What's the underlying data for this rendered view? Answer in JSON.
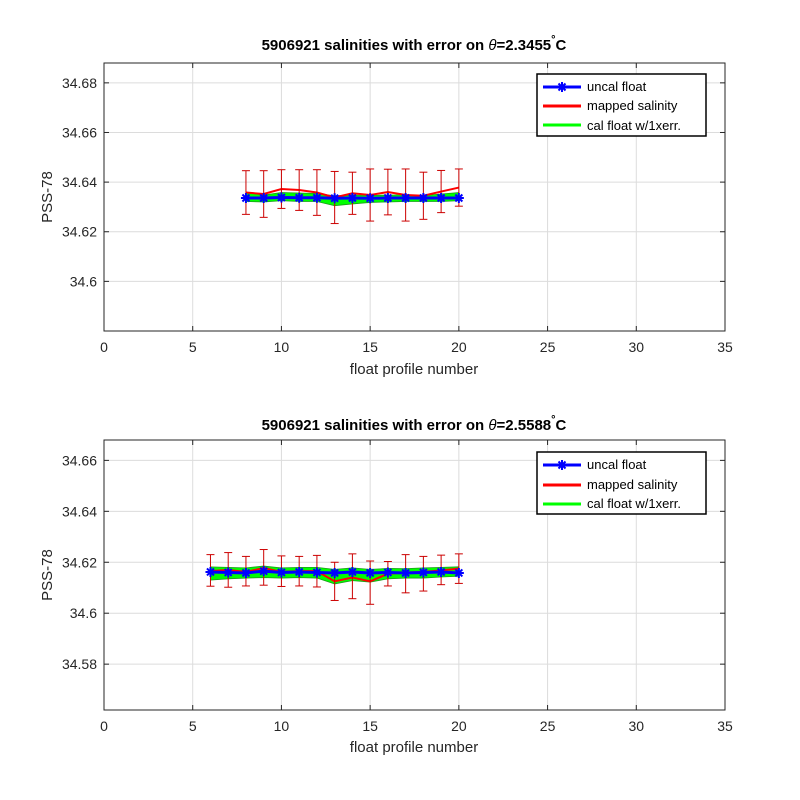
{
  "chart_data": [
    {
      "type": "line",
      "title_prefix": "5906921 salinities with error on ",
      "title_theta": "θ",
      "title_value": "=2.3455",
      "title_degree": "°",
      "title_unit": "C",
      "xlabel": "float profile number",
      "ylabel": "PSS-78",
      "xlim": [
        0,
        35
      ],
      "ylim": [
        34.58,
        34.688
      ],
      "xticks": [
        0,
        5,
        10,
        15,
        20,
        25,
        30,
        35
      ],
      "xtick_labels": [
        "0",
        "5",
        "10",
        "15",
        "20",
        "25",
        "30",
        "35"
      ],
      "yticks": [
        34.6,
        34.62,
        34.64,
        34.66,
        34.68
      ],
      "ytick_labels": [
        "34.6",
        "34.62",
        "34.64",
        "34.66",
        "34.68"
      ],
      "grid": true,
      "legend_position": "top-right",
      "x": [
        8,
        9,
        10,
        11,
        12,
        13,
        14,
        15,
        16,
        17,
        18,
        19,
        20
      ],
      "series": [
        {
          "name": "uncal float",
          "color": "#0000ff",
          "values": [
            34.6336,
            34.6336,
            34.6338,
            34.6337,
            34.6337,
            34.6335,
            34.6336,
            34.6335,
            34.6336,
            34.6336,
            34.6336,
            34.6336,
            34.6336
          ]
        },
        {
          "name": "mapped salinity",
          "color": "#ff0000",
          "values": [
            34.6358,
            34.6352,
            34.6372,
            34.6368,
            34.6358,
            34.6338,
            34.6355,
            34.6348,
            34.636,
            34.6348,
            34.6345,
            34.6362,
            34.6378
          ]
        },
        {
          "name": "cal float w/1xerr.",
          "color": "#00ff00",
          "upper": [
            34.6358,
            34.6348,
            34.6358,
            34.6356,
            34.6354,
            34.6345,
            34.6348,
            34.6346,
            34.6348,
            34.6348,
            34.6346,
            34.6352,
            34.6358
          ],
          "lower": [
            34.6322,
            34.632,
            34.6325,
            34.6322,
            34.6322,
            34.6305,
            34.6312,
            34.6318,
            34.632,
            34.6322,
            34.6322,
            34.6322,
            34.6325
          ]
        }
      ],
      "error_bars": {
        "color": "#cc0000",
        "center": [
          34.6358,
          34.6352,
          34.6372,
          34.6368,
          34.6358,
          34.6338,
          34.6355,
          34.6348,
          34.636,
          34.6348,
          34.6345,
          34.6362,
          34.6378
        ],
        "err": [
          0.0088,
          0.0094,
          0.0078,
          0.0082,
          0.0092,
          0.0105,
          0.0085,
          0.0105,
          0.0092,
          0.0105,
          0.0095,
          0.0085,
          0.0075
        ]
      }
    },
    {
      "type": "line",
      "title_prefix": "5906921 salinities with error on ",
      "title_theta": "θ",
      "title_value": "=2.5588",
      "title_degree": "°",
      "title_unit": "C",
      "xlabel": "float profile number",
      "ylabel": "PSS-78",
      "xlim": [
        0,
        35
      ],
      "ylim": [
        34.562,
        34.668
      ],
      "xticks": [
        0,
        5,
        10,
        15,
        20,
        25,
        30,
        35
      ],
      "xtick_labels": [
        "0",
        "5",
        "10",
        "15",
        "20",
        "25",
        "30",
        "35"
      ],
      "yticks": [
        34.58,
        34.6,
        34.62,
        34.64,
        34.66
      ],
      "ytick_labels": [
        "34.58",
        "34.6",
        "34.62",
        "34.64",
        "34.66"
      ],
      "grid": true,
      "legend_position": "top-right",
      "x": [
        6,
        7,
        8,
        9,
        10,
        11,
        12,
        13,
        14,
        15,
        16,
        17,
        18,
        19,
        20
      ],
      "series": [
        {
          "name": "uncal float",
          "color": "#0000ff",
          "values": [
            34.6162,
            34.616,
            34.6158,
            34.6165,
            34.616,
            34.6162,
            34.616,
            34.6158,
            34.6162,
            34.6158,
            34.616,
            34.6158,
            34.616,
            34.6162,
            34.6158
          ]
        },
        {
          "name": "mapped salinity",
          "color": "#ff0000",
          "values": [
            34.6165,
            34.617,
            34.6162,
            34.6178,
            34.6162,
            34.6165,
            34.6165,
            34.6125,
            34.614,
            34.6125,
            34.6155,
            34.616,
            34.6162,
            34.6168,
            34.6175
          ]
        },
        {
          "name": "cal float w/1xerr.",
          "color": "#00ff00",
          "upper": [
            34.6182,
            34.618,
            34.6178,
            34.6185,
            34.6178,
            34.618,
            34.618,
            34.6172,
            34.6178,
            34.6172,
            34.6176,
            34.6175,
            34.6178,
            34.618,
            34.6182
          ],
          "lower": [
            34.613,
            34.6135,
            34.6138,
            34.614,
            34.6138,
            34.614,
            34.6138,
            34.6115,
            34.6128,
            34.6122,
            34.6135,
            34.6138,
            34.6138,
            34.6142,
            34.6145
          ]
        }
      ],
      "error_bars": {
        "color": "#cc0000",
        "center": [
          34.6168,
          34.617,
          34.6165,
          34.618,
          34.6165,
          34.6165,
          34.6165,
          34.6125,
          34.6145,
          34.612,
          34.6155,
          34.6155,
          34.6155,
          34.617,
          34.6175
        ],
        "err": [
          0.0062,
          0.0068,
          0.0058,
          0.007,
          0.006,
          0.0058,
          0.0062,
          0.0075,
          0.0088,
          0.0085,
          0.0048,
          0.0075,
          0.0068,
          0.0058,
          0.0058
        ]
      }
    }
  ]
}
